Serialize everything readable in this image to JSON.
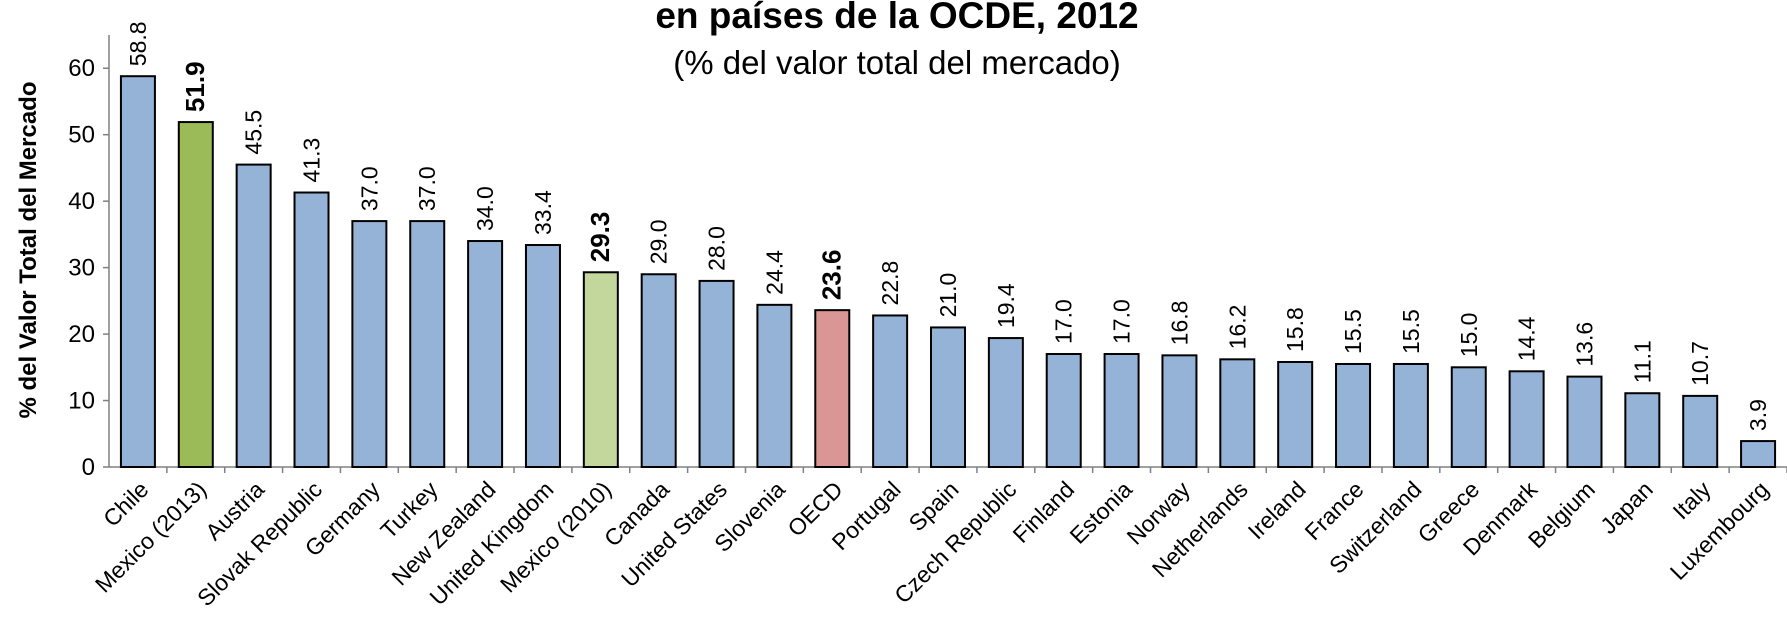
{
  "chart_data": {
    "type": "bar",
    "title": "en países de la OCDE, 2012",
    "subtitle": "(% del valor total del mercado)",
    "y_label": "% del Valor Total del Mercado",
    "categories": [
      "Chile",
      "Mexico (2013)",
      "Austria",
      "Slovak Republic",
      "Germany",
      "Turkey",
      "New Zealand",
      "United Kingdom",
      "Mexico (2010)",
      "Canada",
      "United States",
      "Slovenia",
      "OECD",
      "Portugal",
      "Spain",
      "Czech Republic",
      "Finland",
      "Estonia",
      "Norway",
      "Netherlands",
      "Ireland",
      "France",
      "Switzerland",
      "Greece",
      "Denmark",
      "Belgium",
      "Japan",
      "Italy",
      "Luxembourg"
    ],
    "values": [
      58.8,
      51.9,
      45.5,
      41.3,
      37.0,
      37.0,
      34.0,
      33.4,
      29.3,
      29.0,
      28.0,
      24.4,
      23.6,
      22.8,
      21.0,
      19.4,
      17.0,
      17.0,
      16.8,
      16.2,
      15.8,
      15.5,
      15.5,
      15.0,
      14.4,
      13.6,
      11.1,
      10.7,
      3.9
    ],
    "value_labels": [
      "58.8",
      "51.9",
      "45.5",
      "41.3",
      "37.0",
      "37.0",
      "34.0",
      "33.4",
      "29.3",
      "29.0",
      "28.0",
      "24.4",
      "23.6",
      "22.8",
      "21.0",
      "19.4",
      "17.0",
      "17.0",
      "16.8",
      "16.2",
      "15.8",
      "15.5",
      "15.5",
      "15.0",
      "14.4",
      "13.6",
      "11.1",
      "10.7",
      "3.9"
    ],
    "color": "#95b3d7",
    "colors": [
      "#95b3d7",
      "#9bbb59",
      "#95b3d7",
      "#95b3d7",
      "#95b3d7",
      "#95b3d7",
      "#95b3d7",
      "#95b3d7",
      "#c3d69b",
      "#95b3d7",
      "#95b3d7",
      "#95b3d7",
      "#d99694",
      "#95b3d7",
      "#95b3d7",
      "#95b3d7",
      "#95b3d7",
      "#95b3d7",
      "#95b3d7",
      "#95b3d7",
      "#95b3d7",
      "#95b3d7",
      "#95b3d7",
      "#95b3d7",
      "#95b3d7",
      "#95b3d7",
      "#95b3d7",
      "#95b3d7",
      "#95b3d7"
    ],
    "ylim": [
      0,
      65
    ],
    "yticks": [
      0,
      10,
      20,
      30,
      40,
      50,
      60
    ],
    "grid": false
  }
}
